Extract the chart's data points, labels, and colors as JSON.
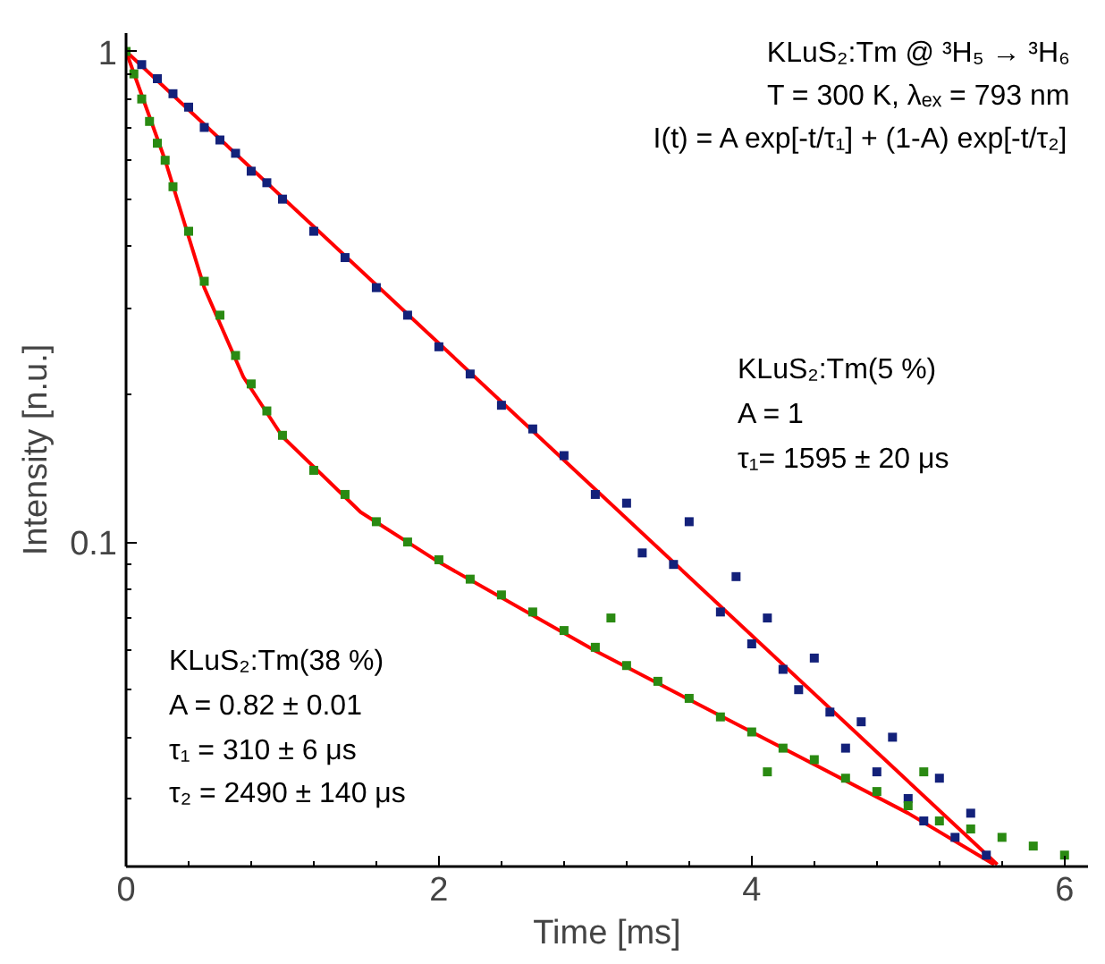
{
  "chart_data": {
    "type": "scatter",
    "xlabel": "Time [ms]",
    "ylabel": "Intensity [n.u.]",
    "log": "y",
    "grid": false,
    "marker": "square",
    "xlim": [
      0,
      6.15
    ],
    "ylim": [
      0.0218,
      1.09
    ],
    "xticks": [
      0,
      {
        "value": 0.4,
        "label": null
      },
      {
        "value": 0.8,
        "label": null
      },
      {
        "value": 1.2,
        "label": null
      },
      {
        "value": 1.6,
        "label": null
      },
      2,
      {
        "value": 2.4,
        "label": null
      },
      {
        "value": 2.8,
        "label": null
      },
      {
        "value": 3.2,
        "label": null
      },
      {
        "value": 3.6,
        "label": null
      },
      4,
      {
        "value": 4.4,
        "label": null
      },
      {
        "value": 4.8,
        "label": null
      },
      {
        "value": 5.2,
        "label": null
      },
      {
        "value": 5.6,
        "label": null
      },
      6
    ],
    "yticks": [
      {
        "value": 0.03,
        "label": null
      },
      {
        "value": 0.04,
        "label": null
      },
      {
        "value": 0.05,
        "label": null
      },
      {
        "value": 0.06,
        "label": null
      },
      {
        "value": 0.07,
        "label": null
      },
      {
        "value": 0.08,
        "label": null
      },
      {
        "value": 0.09,
        "label": null
      },
      0.1,
      {
        "value": 0.2,
        "label": null
      },
      {
        "value": 0.3,
        "label": null
      },
      {
        "value": 0.4,
        "label": null
      },
      {
        "value": 0.5,
        "label": null
      },
      {
        "value": 0.6,
        "label": null
      },
      {
        "value": 0.7,
        "label": null
      },
      {
        "value": 0.8,
        "label": null
      },
      {
        "value": 0.9,
        "label": null
      },
      1
    ],
    "series": [
      {
        "color": "#13217a",
        "x": [
          0.1,
          0.2,
          0.3,
          0.4,
          0.5,
          0.6,
          0.7,
          0.8,
          0.9,
          1.0,
          1.2,
          1.4,
          1.6,
          1.8,
          2.0,
          2.2,
          2.4,
          2.6,
          2.8,
          3.0,
          3.2,
          3.3,
          3.5,
          3.6,
          3.8,
          3.9,
          4.0,
          4.1,
          4.2,
          4.3,
          4.4,
          4.5,
          4.6,
          4.7,
          4.8,
          4.9,
          5.0,
          5.1,
          5.2,
          5.3,
          5.4,
          5.5
        ],
        "values": [
          0.94,
          0.88,
          0.82,
          0.77,
          0.7,
          0.66,
          0.62,
          0.57,
          0.54,
          0.5,
          0.43,
          0.38,
          0.33,
          0.29,
          0.25,
          0.22,
          0.19,
          0.17,
          0.15,
          0.125,
          0.12,
          0.095,
          0.09,
          0.11,
          0.072,
          0.085,
          0.062,
          0.07,
          0.055,
          0.05,
          0.058,
          0.045,
          0.038,
          0.043,
          0.034,
          0.04,
          0.03,
          0.027,
          0.033,
          0.025,
          0.028,
          0.023
        ]
      },
      {
        "color": "#2a8a12",
        "x": [
          0,
          0.05,
          0.1,
          0.15,
          0.2,
          0.25,
          0.3,
          0.4,
          0.5,
          0.6,
          0.7,
          0.8,
          0.9,
          1.0,
          1.2,
          1.4,
          1.6,
          1.8,
          2.0,
          2.2,
          2.4,
          2.6,
          2.8,
          3.0,
          3.1,
          3.2,
          3.4,
          3.6,
          3.8,
          4.0,
          4.1,
          4.2,
          4.4,
          4.6,
          4.8,
          5.0,
          5.1,
          5.2,
          5.4,
          5.6,
          5.8,
          6.0
        ],
        "values": [
          1.0,
          0.9,
          0.8,
          0.72,
          0.65,
          0.6,
          0.53,
          0.43,
          0.34,
          0.29,
          0.24,
          0.21,
          0.185,
          0.165,
          0.14,
          0.125,
          0.11,
          0.1,
          0.092,
          0.084,
          0.078,
          0.072,
          0.066,
          0.061,
          0.07,
          0.056,
          0.052,
          0.048,
          0.044,
          0.041,
          0.034,
          0.038,
          0.036,
          0.033,
          0.031,
          0.029,
          0.034,
          0.027,
          0.026,
          0.025,
          0.024,
          0.023
        ]
      },
      {
        "type": "line",
        "marker": "none",
        "color": "#ff0000",
        "x": [
          0,
          5.57
        ],
        "values": [
          1.0,
          0.022
        ]
      },
      {
        "type": "line",
        "marker": "none",
        "color": "#ff0000",
        "x": [
          0,
          0.25,
          0.5,
          0.75,
          1.0,
          1.5,
          2.0,
          3.0,
          4.0,
          5.0,
          5.55
        ],
        "values": [
          1.0,
          0.6,
          0.33,
          0.217,
          0.164,
          0.115,
          0.091,
          0.06,
          0.041,
          0.028,
          0.022
        ]
      }
    ],
    "annotations": [
      "KLuS₂:Tm @ ³H₅ → ³H₆",
      "T = 300 K, λₑₓ = 793 nm",
      "I(t) = A exp[-t/τ₁] + (1-A) exp[-t/τ₂]",
      "KLuS₂:Tm(5 %)",
      "A = 1",
      "τ₁= 1595 ± 20 μs",
      "KLuS₂:Tm(38 %)",
      "A = 0.82 ± 0.01",
      "τ₁ = 310 ± 6 μs",
      "τ₂ = 2490 ± 140 μs"
    ]
  }
}
